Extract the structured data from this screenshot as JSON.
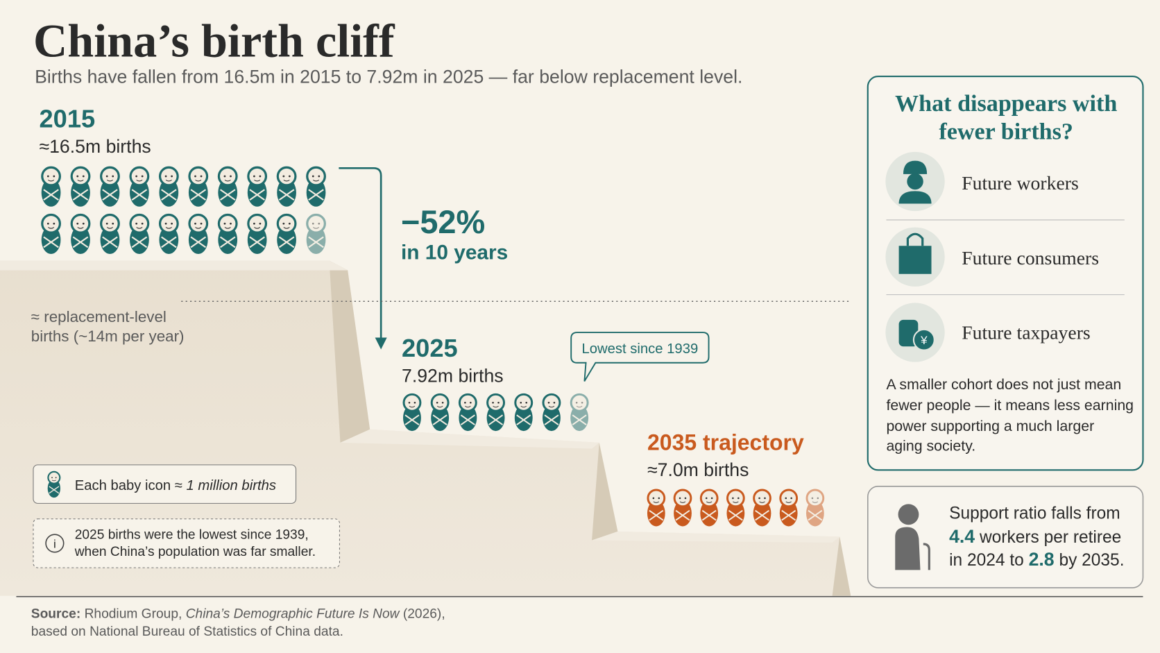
{
  "header": {
    "title": "China’s birth cliff",
    "subtitle": "Births have fallen from 16.5m in 2015 to 7.92m in 2025 — far below replacement level."
  },
  "steps": [
    {
      "year": "2015",
      "births": "≈16.5m births"
    },
    {
      "year": "2025",
      "births": "7.92m births"
    },
    {
      "year": "2035 trajectory",
      "births": "≈7.0m births"
    }
  ],
  "change": {
    "value": "−52%",
    "label": "in 10 years"
  },
  "replacement_label": [
    "≈ replacement-level",
    "births (~14m per year)"
  ],
  "callout": "Lowest since 1939",
  "legend": {
    "prefix": "Each baby icon ≈ ",
    "emphasis": "1 million births"
  },
  "note": [
    "2025 births were the lowest since 1939,",
    "when China’s population was far smaller."
  ],
  "panel": {
    "title": [
      "What disappears with",
      "fewer births?"
    ],
    "items": [
      "Future workers",
      "Future consumers",
      "Future taxpayers"
    ],
    "text": [
      "A smaller cohort does not just mean",
      "fewer people — it means less earning",
      "power supporting a much larger",
      "aging society."
    ]
  },
  "support": {
    "line1": "Support ratio falls from",
    "ratio_2024": "4.4",
    "line2_rest": " workers per retiree",
    "line3_start": "in 2024 to ",
    "ratio_2035": "2.8",
    "line3_end": " by 2035."
  },
  "source": {
    "label": "Source:",
    "text": " Rhodium Group, ",
    "title": "China’s Demographic Future Is Now",
    "after": " (2026),",
    "line2": "based on National Bureau of Statistics of China data."
  }
}
